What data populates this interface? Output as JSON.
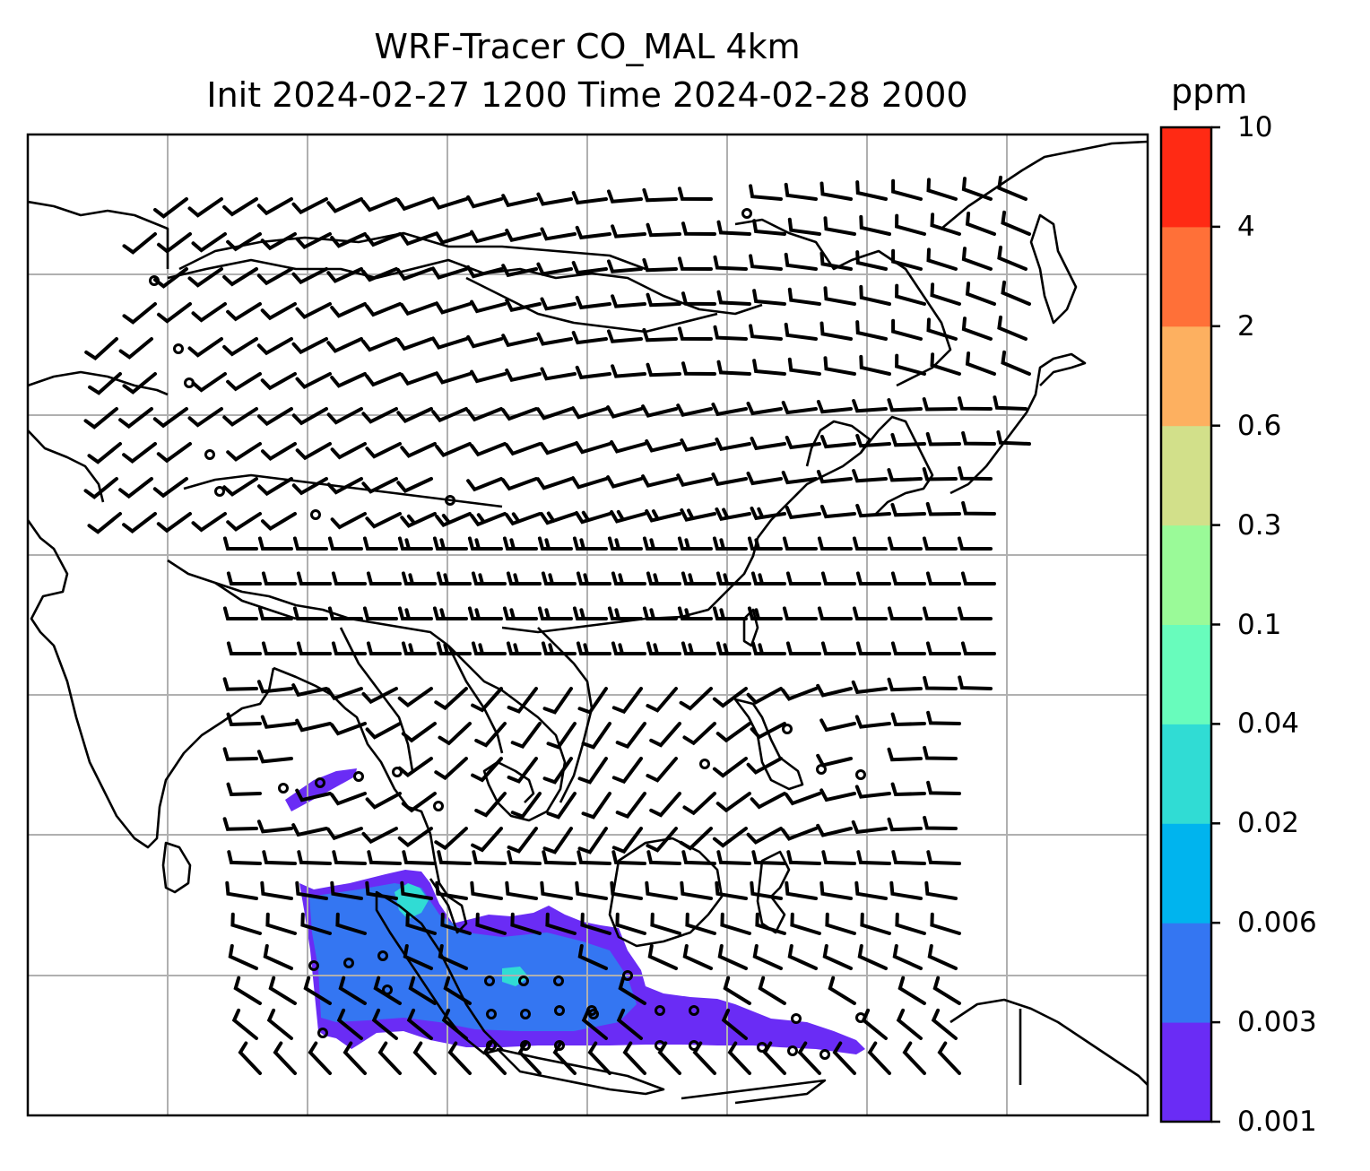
{
  "title": {
    "line1": "WRF-Tracer CO_MAL 4km",
    "line2": "Init 2024-02-27 1200 Time 2024-02-28 2000"
  },
  "colorbar": {
    "unit": "ppm",
    "levels": [
      "0.001",
      "0.003",
      "0.006",
      "0.02",
      "0.04",
      "0.1",
      "0.3",
      "0.6",
      "2",
      "4",
      "10"
    ],
    "colors": [
      "#6a2cf5",
      "#3476f2",
      "#00b4ee",
      "#30dcd4",
      "#68fcbc",
      "#9afa98",
      "#d2e08a",
      "#fdb060",
      "#ff7038",
      "#ff2a14"
    ]
  },
  "map": {
    "projection": "lat-lon",
    "gridlines": true,
    "plume_colors": {
      "low": "#6a2cf5",
      "mid": "#3476f2",
      "high": "#30dcd4"
    }
  }
}
